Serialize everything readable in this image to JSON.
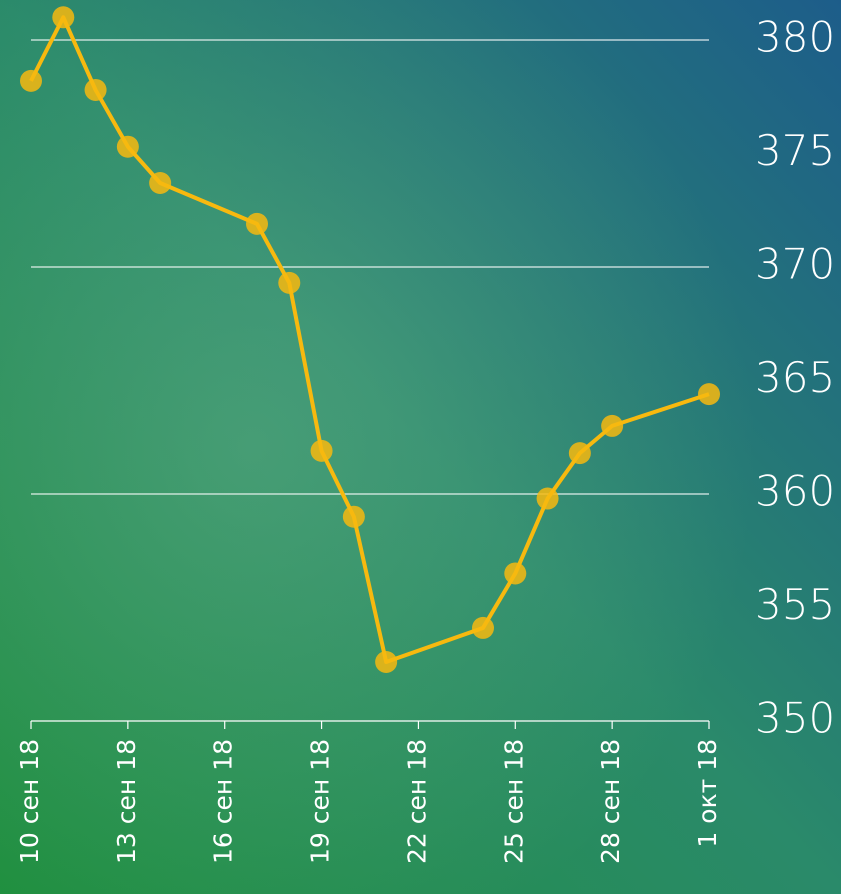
{
  "chart_data": {
    "type": "line",
    "x": [
      "2018-09-10",
      "2018-09-11",
      "2018-09-12",
      "2018-09-13",
      "2018-09-14",
      "2018-09-17",
      "2018-09-18",
      "2018-09-19",
      "2018-09-20",
      "2018-09-21",
      "2018-09-24",
      "2018-09-25",
      "2018-09-26",
      "2018-09-27",
      "2018-09-28",
      "2018-10-01"
    ],
    "series": [
      {
        "color": "#f7b90f",
        "values": [
          378.2,
          381.0,
          377.8,
          375.3,
          373.7,
          371.9,
          369.3,
          361.9,
          359.0,
          352.6,
          354.1,
          356.5,
          359.8,
          361.8,
          363.0,
          364.4
        ]
      }
    ],
    "xlim": [
      "2018-09-10",
      "2018-10-01"
    ],
    "xticks": [
      {
        "value": "2018-09-10",
        "label": "10 сен 18"
      },
      {
        "value": "2018-09-13",
        "label": "13 сен 18"
      },
      {
        "value": "2018-09-16",
        "label": "16 сен 18"
      },
      {
        "value": "2018-09-19",
        "label": "19 сен 18"
      },
      {
        "value": "2018-09-22",
        "label": "22 сен 18"
      },
      {
        "value": "2018-09-25",
        "label": "25 сен 18"
      },
      {
        "value": "2018-09-28",
        "label": "28 сен 18"
      },
      {
        "value": "2018-10-01",
        "label": "1 окт 18"
      }
    ],
    "ylim": [
      350,
      380
    ],
    "yticks": [
      350,
      355,
      360,
      365,
      370,
      375,
      380
    ],
    "ygrid": [
      360,
      370,
      380
    ]
  }
}
